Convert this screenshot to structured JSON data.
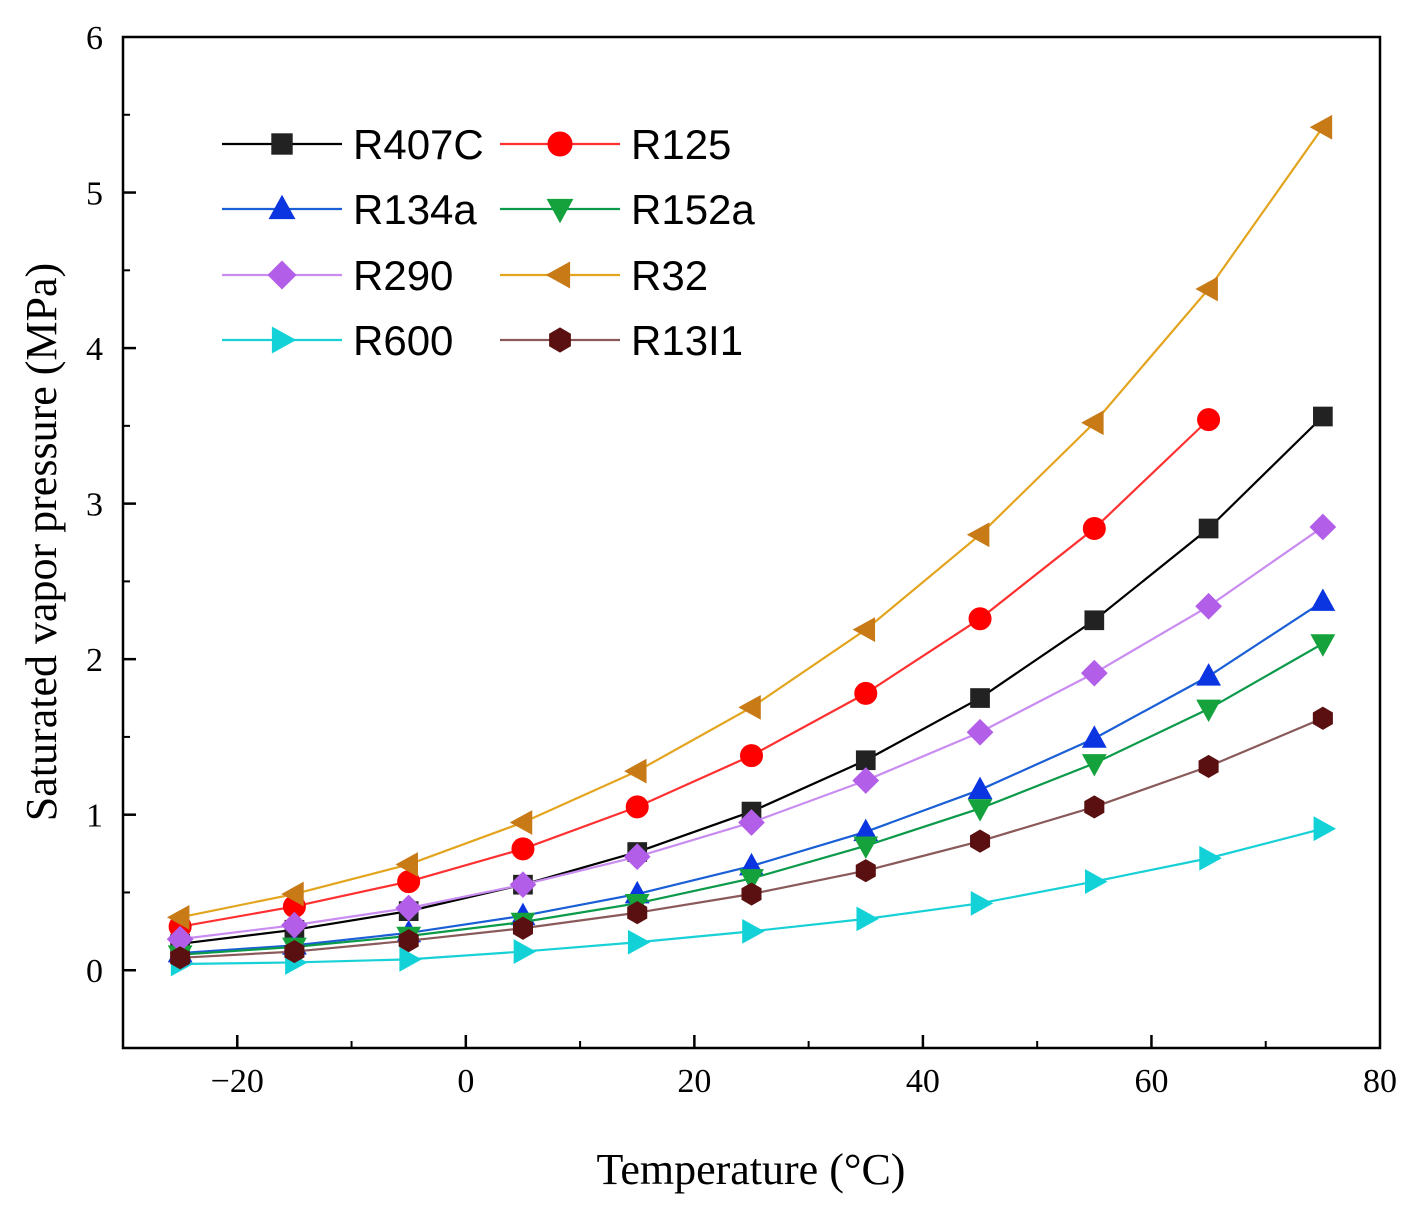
{
  "chart_data": {
    "type": "line",
    "title": "",
    "xlabel": "Temperature (°C)",
    "ylabel": "Saturated vapor pressure (MPa)",
    "xlim": [
      -30,
      80
    ],
    "ylim": [
      -0.5,
      6
    ],
    "xticks": [
      -20,
      0,
      20,
      40,
      60,
      80
    ],
    "yticks": [
      0,
      1,
      2,
      3,
      4,
      5,
      6
    ],
    "xtick_labels": [
      "−20",
      "0",
      "20",
      "40",
      "60",
      "80"
    ],
    "ytick_labels": [
      "0",
      "1",
      "2",
      "3",
      "4",
      "5",
      "6"
    ],
    "grid": false,
    "legend_position": "top-left",
    "x": [
      -25,
      -15,
      -5,
      5,
      15,
      25,
      35,
      45,
      55,
      65,
      75
    ],
    "series": [
      {
        "name": "R407C",
        "color": "#000000",
        "fill": "#222222",
        "marker": "square",
        "values": [
          0.17,
          0.26,
          0.38,
          0.55,
          0.76,
          1.02,
          1.35,
          1.75,
          2.25,
          2.84,
          3.56
        ]
      },
      {
        "name": "R125",
        "color": "#ff3030",
        "fill": "#ff0000",
        "marker": "circle",
        "values": [
          0.28,
          0.41,
          0.57,
          0.78,
          1.05,
          1.38,
          1.78,
          2.26,
          2.84,
          3.54,
          null
        ]
      },
      {
        "name": "R134a",
        "color": "#1a5fd6",
        "fill": "#0a35e0",
        "marker": "triangle-up",
        "values": [
          0.11,
          0.16,
          0.24,
          0.35,
          0.49,
          0.67,
          0.89,
          1.16,
          1.49,
          1.89,
          2.37
        ]
      },
      {
        "name": "R152a",
        "color": "#0b9a4a",
        "fill": "#15a23c",
        "marker": "triangle-down",
        "values": [
          0.1,
          0.15,
          0.22,
          0.31,
          0.43,
          0.59,
          0.8,
          1.04,
          1.33,
          1.68,
          2.1
        ]
      },
      {
        "name": "R290",
        "color": "#c98cf0",
        "fill": "#b35ee8",
        "marker": "diamond",
        "values": [
          0.2,
          0.29,
          0.4,
          0.55,
          0.73,
          0.95,
          1.22,
          1.53,
          1.91,
          2.34,
          2.85
        ]
      },
      {
        "name": "R32",
        "color": "#e3a41e",
        "fill": "#c77a16",
        "marker": "triangle-left",
        "values": [
          0.34,
          0.49,
          0.68,
          0.95,
          1.28,
          1.69,
          2.19,
          2.8,
          3.52,
          4.38,
          5.42
        ]
      },
      {
        "name": "R600",
        "color": "#17d1d6",
        "fill": "#12d2d8",
        "marker": "triangle-right",
        "values": [
          0.04,
          0.05,
          0.07,
          0.12,
          0.18,
          0.25,
          0.33,
          0.43,
          0.57,
          0.72,
          0.91
        ]
      },
      {
        "name": "R13I1",
        "color": "#8a5a5a",
        "fill": "#5a1010",
        "marker": "hexagon",
        "values": [
          0.08,
          0.12,
          0.19,
          0.27,
          0.37,
          0.49,
          0.64,
          0.83,
          1.05,
          1.31,
          1.62
        ]
      }
    ]
  }
}
